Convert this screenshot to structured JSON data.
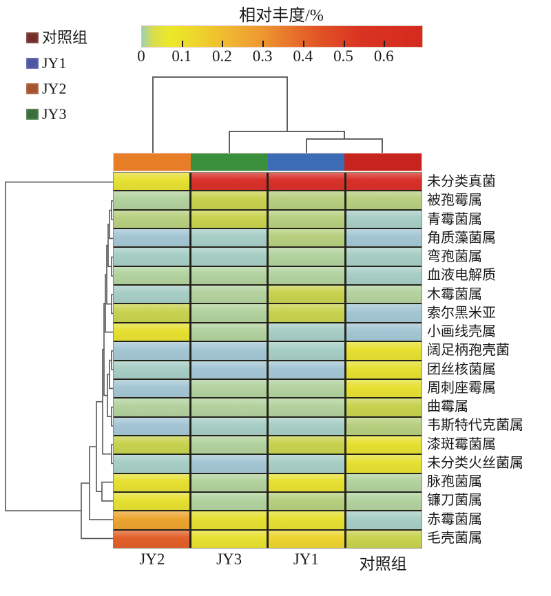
{
  "figure": {
    "colorbar": {
      "title": "相对丰度/%",
      "tick_labels": [
        "0",
        "0.1",
        "0.2",
        "0.3",
        "0.4",
        "0.5",
        "0.6"
      ],
      "gradient_stops": [
        "#9ed0ae 0%",
        "#d9dd4e 4%",
        "#ece929 10%",
        "#eecf2c 22%",
        "#f0b132 33%",
        "#ee9a30 42%",
        "#e8782c 52%",
        "#e15125 64%",
        "#d93422 78%",
        "#d52a1e 100%"
      ]
    },
    "group_legend": {
      "items": [
        {
          "label": "对照组",
          "color": "#73302a"
        },
        {
          "label": "JY1",
          "color": "#4f55a0"
        },
        {
          "label": "JY2",
          "color": "#a4552f"
        },
        {
          "label": "JY3",
          "color": "#3a6f3c"
        }
      ]
    }
  },
  "chart_data": {
    "type": "heatmap",
    "title": "相对丰度/%",
    "unit": "%",
    "colorbar_range": [
      0,
      0.65
    ],
    "legend_position": "top-left",
    "columns": [
      "JY2",
      "JY3",
      "JY1",
      "对照组"
    ],
    "column_strip_colors": [
      "#e87d27",
      "#3a8f3c",
      "#3c6cb5",
      "#c8241f"
    ],
    "column_dendrogram_topology": "(JY2,(JY3,(JY1,对照组)))",
    "rows": [
      "未分类真菌",
      "被孢霉属",
      "青霉菌属",
      "角质藻菌属",
      "弯孢菌属",
      "血液电解质",
      "木霉菌属",
      "索尔黑米亚",
      "小画线壳属",
      "阔足柄孢壳菌",
      "团丝核菌属",
      "周刺座霉属",
      "曲霉属",
      "韦斯特代克菌属",
      "漆斑霉菌属",
      "未分类火丝菌属",
      "脉孢菌属",
      "镰刀菌属",
      "赤霉菌属",
      "毛壳菌属"
    ],
    "palette": {
      "B": {
        "color": "#a4c6d4",
        "value_estimate": 0.0
      },
      "T": {
        "color": "#a7cec5",
        "value_estimate": 0.005
      },
      "G": {
        "color": "#b2d29e",
        "value_estimate": 0.01
      },
      "LG": {
        "color": "#b7cf7f",
        "value_estimate": 0.02
      },
      "YG": {
        "color": "#c8d24f",
        "value_estimate": 0.04
      },
      "Y": {
        "color": "#e6e032",
        "value_estimate": 0.07
      },
      "YO": {
        "color": "#ecd32e",
        "value_estimate": 0.1
      },
      "O": {
        "color": "#eda42f",
        "value_estimate": 0.3
      },
      "DO": {
        "color": "#e2602a",
        "value_estimate": 0.45
      },
      "R": {
        "color": "#d8302a",
        "value_estimate": 0.62
      }
    },
    "cells": [
      [
        "Y",
        "R",
        "R",
        "R"
      ],
      [
        "G",
        "YG",
        "LG",
        "LG"
      ],
      [
        "LG",
        "YG",
        "LG",
        "T"
      ],
      [
        "B",
        "T",
        "LG",
        "B"
      ],
      [
        "T",
        "T",
        "G",
        "T"
      ],
      [
        "G",
        "G",
        "G",
        "T"
      ],
      [
        "T",
        "G",
        "YG",
        "G"
      ],
      [
        "YG",
        "G",
        "YG",
        "B"
      ],
      [
        "Y",
        "G",
        "T",
        "B"
      ],
      [
        "B",
        "B",
        "T",
        "Y"
      ],
      [
        "T",
        "B",
        "B",
        "Y"
      ],
      [
        "B",
        "G",
        "G",
        "Y"
      ],
      [
        "G",
        "G",
        "G",
        "YG"
      ],
      [
        "B",
        "T",
        "T",
        "LG"
      ],
      [
        "YG",
        "G",
        "YG",
        "Y"
      ],
      [
        "T",
        "B",
        "T",
        "Y"
      ],
      [
        "Y",
        "G",
        "Y",
        "G"
      ],
      [
        "Y",
        "G",
        "LG",
        "G"
      ],
      [
        "O",
        "Y",
        "Y",
        "T"
      ],
      [
        "DO",
        "Y",
        "YO",
        "YG"
      ]
    ],
    "bottom_axis_labels": [
      "JY2",
      "JY3",
      "JY1",
      "对照组"
    ]
  }
}
